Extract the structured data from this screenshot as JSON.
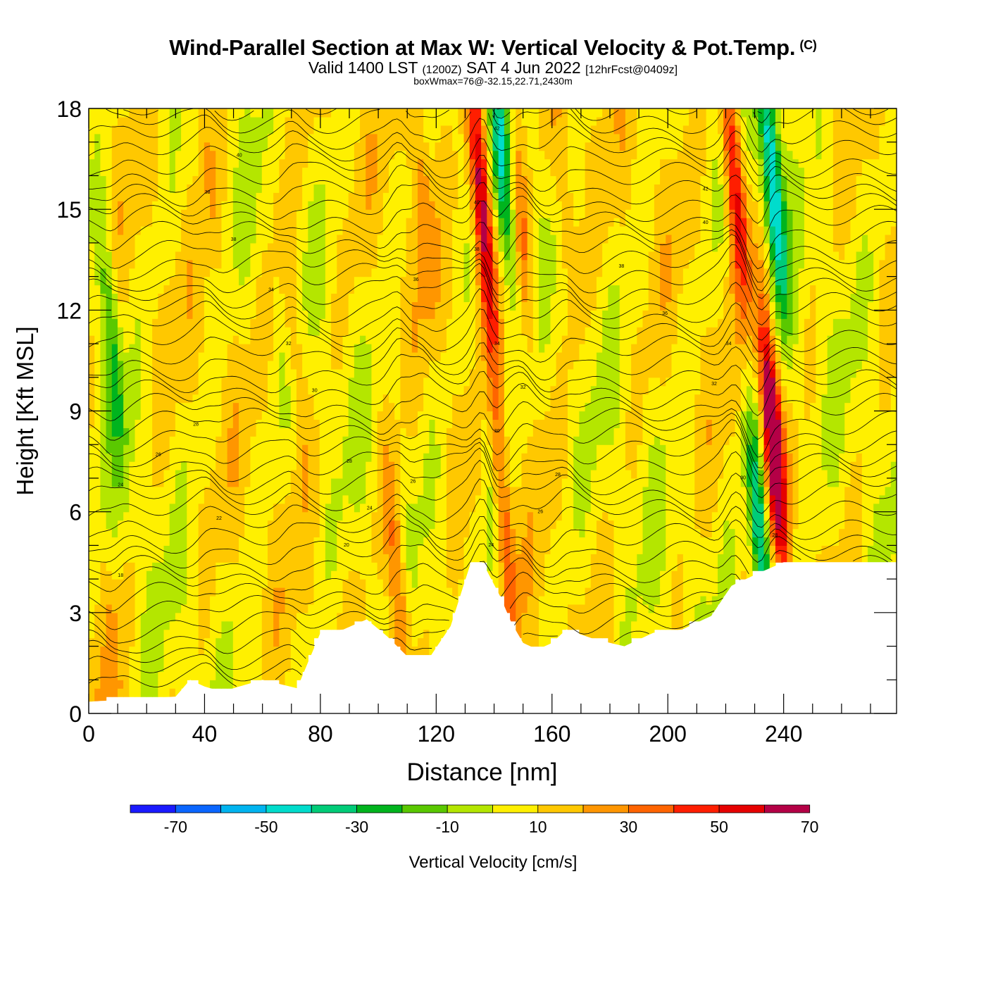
{
  "title": {
    "main": "Wind-Parallel Section at Max W: Vertical Velocity & Pot.Temp.",
    "mark": "(C)",
    "valid": "Valid 1400 LST",
    "utc": "(1200Z)",
    "date": "SAT 4 Jun 2022",
    "forecast": "[12hrFcst@0409z]",
    "note": "boxWmax=76@-32.15,22.71,2430m"
  },
  "chart_data": {
    "type": "heatmap",
    "xlabel": "Distance [nm]",
    "ylabel": "Height [Kft MSL]",
    "xlim": [
      0,
      279
    ],
    "ylim": [
      0,
      18
    ],
    "xticks": [
      "0",
      "40",
      "80",
      "120",
      "160",
      "200",
      "240"
    ],
    "xtick_values": [
      0,
      40,
      80,
      120,
      160,
      200,
      240
    ],
    "yticks": [
      "0",
      "3",
      "6",
      "9",
      "12",
      "15",
      "18"
    ],
    "ytick_values": [
      0,
      3,
      6,
      9,
      12,
      15,
      18
    ],
    "colorbar": {
      "label": "Vertical Velocity [cm/s]",
      "labels": [
        "-70",
        "-50",
        "-30",
        "-10",
        "10",
        "30",
        "50",
        "70"
      ],
      "label_values": [
        -70,
        -50,
        -30,
        -10,
        10,
        30,
        50,
        70
      ],
      "boundaries": [
        -80,
        -70,
        -60,
        -50,
        -40,
        -30,
        -20,
        -10,
        0,
        10,
        20,
        30,
        40,
        50,
        60,
        70,
        80
      ],
      "colors": [
        "#1a1aff",
        "#0a66ff",
        "#00b4f0",
        "#00dccc",
        "#00cc78",
        "#00b41e",
        "#5ac800",
        "#b4e600",
        "#fff000",
        "#ffc800",
        "#ff9600",
        "#ff6400",
        "#ff1e00",
        "#e60000",
        "#b40046"
      ]
    },
    "terrain_kft": {
      "x": [
        0,
        30,
        35,
        40,
        46,
        60,
        72,
        80,
        88,
        96,
        103,
        110,
        118,
        125,
        132,
        136,
        142,
        146,
        150,
        155,
        160,
        165,
        175,
        185,
        195,
        205,
        215,
        222,
        232,
        240,
        250,
        265,
        279
      ],
      "y": [
        0.35,
        0.5,
        1.0,
        0.8,
        0.65,
        1.0,
        0.75,
        2.4,
        2.5,
        2.8,
        2.3,
        1.7,
        1.7,
        2.6,
        4.5,
        4.5,
        3.5,
        2.7,
        2.1,
        1.9,
        2.1,
        2.5,
        2.2,
        2.0,
        2.4,
        2.5,
        2.9,
        3.8,
        4.2,
        4.5,
        4.5,
        4.5,
        4.5
      ]
    },
    "w_features": [
      {
        "x": 8,
        "z": 11,
        "w": -30
      },
      {
        "x": 8,
        "z": 2,
        "w": 15
      },
      {
        "x": 41,
        "z": 17,
        "w": 15
      },
      {
        "x": 70,
        "z": 12,
        "w": 18
      },
      {
        "x": 107,
        "z": 3.5,
        "w": 35
      },
      {
        "x": 115,
        "z": 16,
        "w": 20
      },
      {
        "x": 136,
        "z": 15,
        "w": 65
      },
      {
        "x": 143,
        "z": 5.5,
        "w": 45
      },
      {
        "x": 140,
        "z": 6.5,
        "w": -30
      },
      {
        "x": 143,
        "z": 16.5,
        "w": -40
      },
      {
        "x": 150,
        "z": 14,
        "w": 25
      },
      {
        "x": 165,
        "z": 15,
        "w": 18
      },
      {
        "x": 223,
        "z": 16,
        "w": 50
      },
      {
        "x": 236,
        "z": 8.5,
        "w": 75
      },
      {
        "x": 232,
        "z": 5,
        "w": -55
      },
      {
        "x": 236,
        "z": 16,
        "w": -60
      }
    ],
    "theta_labels": [
      {
        "x": 52,
        "z": 16.6,
        "label": "40"
      },
      {
        "x": 41,
        "z": 15.5,
        "label": "38"
      },
      {
        "x": 50,
        "z": 14.1,
        "label": "38"
      },
      {
        "x": 63,
        "z": 12.6,
        "label": "34"
      },
      {
        "x": 69,
        "z": 11.0,
        "label": "32"
      },
      {
        "x": 78,
        "z": 9.6,
        "label": "30"
      },
      {
        "x": 37,
        "z": 8.6,
        "label": "28"
      },
      {
        "x": 24,
        "z": 7.7,
        "label": "26"
      },
      {
        "x": 11,
        "z": 6.8,
        "label": "24"
      },
      {
        "x": 45,
        "z": 5.8,
        "label": "22"
      },
      {
        "x": 11,
        "z": 4.1,
        "label": "18"
      },
      {
        "x": 90,
        "z": 7.5,
        "label": "28"
      },
      {
        "x": 89,
        "z": 5.0,
        "label": "20"
      },
      {
        "x": 97,
        "z": 6.1,
        "label": "24"
      },
      {
        "x": 112,
        "z": 6.9,
        "label": "26"
      },
      {
        "x": 113,
        "z": 12.9,
        "label": "36"
      },
      {
        "x": 141,
        "z": 17.4,
        "label": "42"
      },
      {
        "x": 134,
        "z": 15.2,
        "label": "40"
      },
      {
        "x": 134,
        "z": 13.8,
        "label": "38"
      },
      {
        "x": 141,
        "z": 11.0,
        "label": "34"
      },
      {
        "x": 141,
        "z": 8.4,
        "label": "30"
      },
      {
        "x": 139,
        "z": 5.0,
        "label": "24"
      },
      {
        "x": 150,
        "z": 9.7,
        "label": "32"
      },
      {
        "x": 162,
        "z": 7.1,
        "label": "28"
      },
      {
        "x": 156,
        "z": 6.0,
        "label": "26"
      },
      {
        "x": 184,
        "z": 13.3,
        "label": "38"
      },
      {
        "x": 199,
        "z": 11.9,
        "label": "36"
      },
      {
        "x": 213,
        "z": 15.6,
        "label": "42"
      },
      {
        "x": 213,
        "z": 14.6,
        "label": "40"
      },
      {
        "x": 221,
        "z": 11.0,
        "label": "34"
      },
      {
        "x": 216,
        "z": 9.8,
        "label": "32"
      },
      {
        "x": 226,
        "z": 7.0,
        "label": "30"
      },
      {
        "x": 237,
        "z": 5.3,
        "label": "28"
      }
    ]
  }
}
